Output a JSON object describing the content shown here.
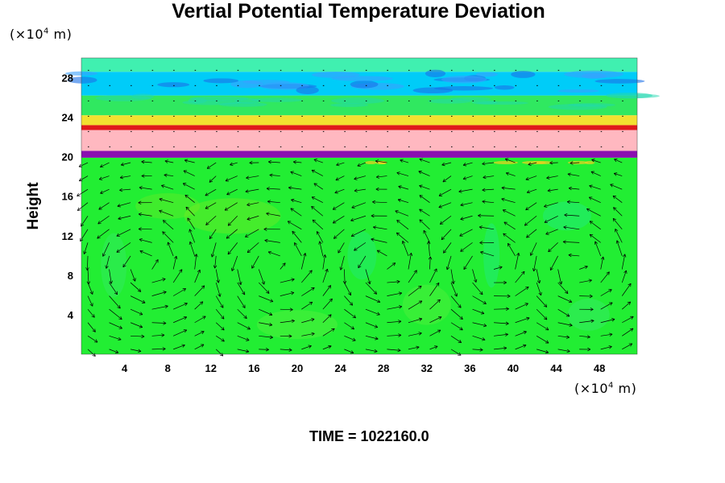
{
  "title": "Vertial Potential Temperature Deviation",
  "y_unit": {
    "prefix": "(×10",
    "exp": "4",
    "suffix": " m)"
  },
  "x_unit": {
    "prefix": "(×10",
    "exp": "4",
    "suffix": " m)"
  },
  "time": {
    "label": "TIME = ",
    "value": "1022160.0"
  },
  "chart_data": {
    "type": "heatmap",
    "title": "Vertial Potential Temperature Deviation",
    "xlabel": "",
    "ylabel": "Height",
    "x_unit": "(×10^4 m)",
    "y_unit": "(×10^4 m)",
    "xlim": [
      0,
      51.5
    ],
    "ylim": [
      0,
      30
    ],
    "x_ticks": [
      4,
      8,
      12,
      16,
      20,
      24,
      28,
      32,
      36,
      40,
      44,
      48
    ],
    "y_ticks": [
      4,
      8,
      12,
      16,
      20,
      24,
      28
    ],
    "overlay": "velocity vectors (arrows)",
    "layers": [
      {
        "from": 0,
        "to": 19.9,
        "color": "#22ee33",
        "desc": "near-zero deviation"
      },
      {
        "from": 19.9,
        "to": 20.6,
        "color": "#8a0fb0"
      },
      {
        "from": 20.6,
        "to": 22.7,
        "color": "#ffb8c0"
      },
      {
        "from": 22.7,
        "to": 23.2,
        "color": "#e0181a"
      },
      {
        "from": 23.2,
        "to": 24.2,
        "color": "#f2e030"
      },
      {
        "from": 24.2,
        "to": 26.2,
        "color": "#30e860"
      },
      {
        "from": 26.2,
        "to": 28.6,
        "color": "#00ccf8"
      },
      {
        "from": 28.6,
        "to": 30,
        "color": "#40f0b0"
      }
    ],
    "vortex_centers_x": [
      6,
      18,
      28,
      38,
      46
    ]
  }
}
